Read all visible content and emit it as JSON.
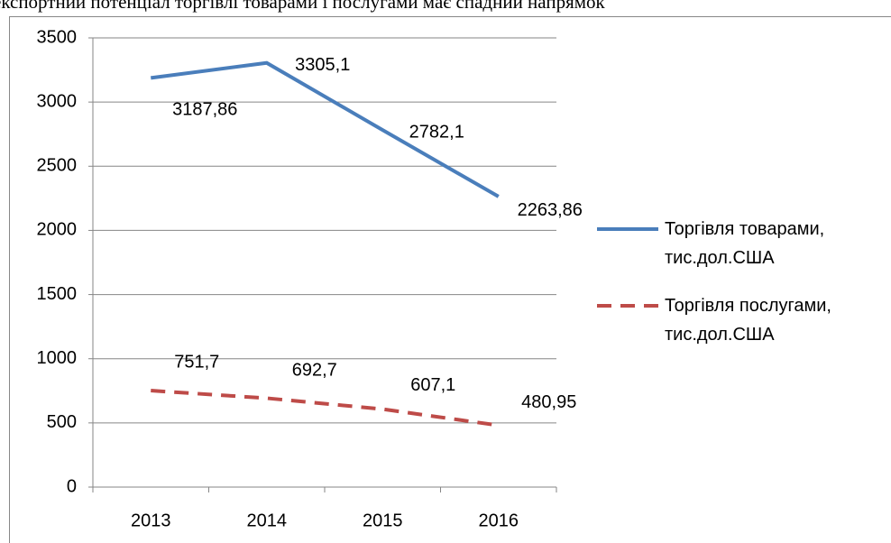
{
  "caption": "експортний потенціал торгівлі товарами і послугами має спадний напрямок",
  "chart_data": {
    "type": "line",
    "categories": [
      "2013",
      "2014",
      "2015",
      "2016"
    ],
    "series": [
      {
        "name": "Торгівля товарами, тис.дол.США",
        "color": "#4a7ebb",
        "dash": "solid",
        "values": [
          3187.86,
          3305.1,
          2782.1,
          2263.86
        ],
        "value_labels": [
          "3187,86",
          "3305,1",
          "2782,1",
          "2263,86"
        ]
      },
      {
        "name": "Торгівля послугами, тис.дол.США",
        "color": "#be4b48",
        "dash": "dashed",
        "values": [
          751.7,
          692.7,
          607.1,
          480.95
        ],
        "value_labels": [
          "751,7",
          "692,7",
          "607,1",
          "480,95"
        ]
      }
    ],
    "ylim": [
      0,
      3500
    ],
    "yticks": [
      0,
      500,
      1000,
      1500,
      2000,
      2500,
      3000,
      3500
    ],
    "grid": true,
    "legend": "right"
  }
}
